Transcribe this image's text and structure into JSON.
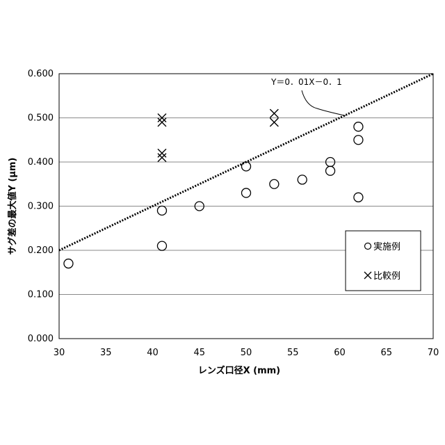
{
  "chart_data": {
    "type": "scatter",
    "title": "",
    "xlabel": "レンズ口径X (mm)",
    "ylabel": "サグ差の最大値Y (μm)",
    "xlim": [
      30,
      70
    ],
    "ylim": [
      0,
      0.6
    ],
    "x_ticks": [
      "30",
      "35",
      "40",
      "45",
      "50",
      "55",
      "60",
      "65",
      "70"
    ],
    "y_ticks": [
      "0.000",
      "0.100",
      "0.200",
      "0.300",
      "0.400",
      "0.500",
      "0.600"
    ],
    "grid": "horizontal",
    "legend_position": "bottom-right",
    "series": [
      {
        "name": "実施例",
        "marker": "circle",
        "points": [
          {
            "x": 31,
            "y": 0.17
          },
          {
            "x": 41,
            "y": 0.21
          },
          {
            "x": 41,
            "y": 0.29
          },
          {
            "x": 45,
            "y": 0.3
          },
          {
            "x": 50,
            "y": 0.33
          },
          {
            "x": 50,
            "y": 0.39
          },
          {
            "x": 53,
            "y": 0.35
          },
          {
            "x": 56,
            "y": 0.36
          },
          {
            "x": 59,
            "y": 0.38
          },
          {
            "x": 59,
            "y": 0.4
          },
          {
            "x": 62,
            "y": 0.32
          },
          {
            "x": 62,
            "y": 0.45
          },
          {
            "x": 62,
            "y": 0.48
          }
        ]
      },
      {
        "name": "比較例",
        "marker": "cross",
        "points": [
          {
            "x": 41,
            "y": 0.41
          },
          {
            "x": 41,
            "y": 0.42
          },
          {
            "x": 41,
            "y": 0.49
          },
          {
            "x": 41,
            "y": 0.5
          },
          {
            "x": 53,
            "y": 0.49
          },
          {
            "x": 53,
            "y": 0.51
          }
        ]
      }
    ],
    "boundary_line": {
      "label": "Y＝0．01X－0．1",
      "slope": 0.01,
      "intercept": -0.1,
      "style": "dotted"
    },
    "annotation": {
      "text": "Y＝0．01X－0．1",
      "x": 60.5,
      "y": 0.5
    }
  }
}
